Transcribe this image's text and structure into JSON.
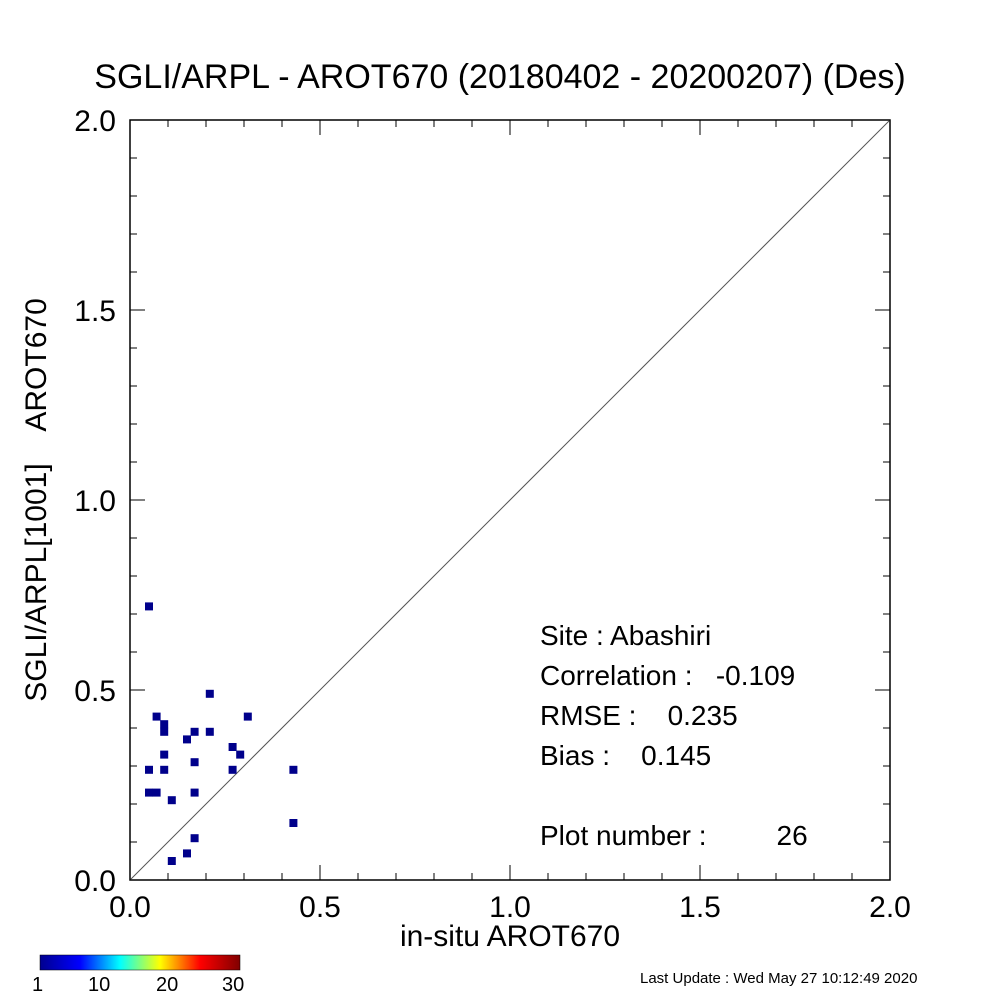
{
  "chart_data": {
    "type": "scatter",
    "title": "SGLI/ARPL - AROT670 (20180402 - 20200207) (Des)",
    "xlabel": "in-situ AROT670",
    "ylabel": "SGLI/ARPL[1001]    AROT670",
    "xlim": [
      0.0,
      2.0
    ],
    "ylim": [
      0.0,
      2.0
    ],
    "x_ticks": [
      "0.0",
      "0.5",
      "1.0",
      "1.5",
      "2.0"
    ],
    "y_ticks": [
      "0.0",
      "0.5",
      "1.0",
      "1.5",
      "2.0"
    ],
    "reference_line": "1:1",
    "grid": false,
    "marker_color": "#00008b",
    "points": [
      {
        "x": 0.05,
        "y": 0.72
      },
      {
        "x": 0.21,
        "y": 0.49
      },
      {
        "x": 0.07,
        "y": 0.43
      },
      {
        "x": 0.31,
        "y": 0.43
      },
      {
        "x": 0.09,
        "y": 0.41
      },
      {
        "x": 0.09,
        "y": 0.39
      },
      {
        "x": 0.17,
        "y": 0.39
      },
      {
        "x": 0.21,
        "y": 0.39
      },
      {
        "x": 0.15,
        "y": 0.37
      },
      {
        "x": 0.27,
        "y": 0.35
      },
      {
        "x": 0.09,
        "y": 0.33
      },
      {
        "x": 0.29,
        "y": 0.33
      },
      {
        "x": 0.17,
        "y": 0.31
      },
      {
        "x": 0.05,
        "y": 0.29
      },
      {
        "x": 0.09,
        "y": 0.29
      },
      {
        "x": 0.27,
        "y": 0.29
      },
      {
        "x": 0.43,
        "y": 0.29
      },
      {
        "x": 0.05,
        "y": 0.23
      },
      {
        "x": 0.07,
        "y": 0.23
      },
      {
        "x": 0.17,
        "y": 0.23
      },
      {
        "x": 0.11,
        "y": 0.21
      },
      {
        "x": 0.43,
        "y": 0.15
      },
      {
        "x": 0.17,
        "y": 0.11
      },
      {
        "x": 0.15,
        "y": 0.07
      },
      {
        "x": 0.11,
        "y": 0.05
      }
    ],
    "colorbar": {
      "ticks": [
        "1",
        "10",
        "20",
        "30"
      ],
      "colors": [
        "#00008f",
        "#0000ff",
        "#00ffff",
        "#ffff00",
        "#ff0000",
        "#800000"
      ]
    }
  },
  "stats": {
    "site": "Site : Abashiri",
    "correlation": "Correlation :   -0.109",
    "rmse": "RMSE :    0.235",
    "bias": "Bias :    0.145",
    "plot_number": "Plot number :         26"
  },
  "footer": "Last Update : Wed May 27 10:12:49 2020"
}
